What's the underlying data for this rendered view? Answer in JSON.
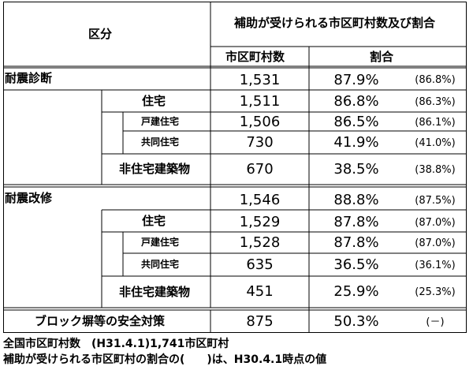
{
  "table": {
    "header": {
      "category": "区分",
      "group": "補助が受けられる市区町村数及び割合",
      "count_col": "市区町村数",
      "ratio_col": "割合"
    },
    "sections": [
      {
        "label": "耐震診断",
        "count": "1,531",
        "ratio": "87.9%",
        "prev": "(86.8%)",
        "rows": [
          {
            "label": "住宅",
            "count": "1,511",
            "ratio": "86.8%",
            "prev": "(86.3%)"
          },
          {
            "label": "戸建住宅",
            "count": "1,506",
            "ratio": "86.5%",
            "prev": "(86.1%)"
          },
          {
            "label": "共同住宅",
            "count": "730",
            "ratio": "41.9%",
            "prev": "(41.0%)"
          },
          {
            "label": "非住宅建築物",
            "count": "670",
            "ratio": "38.5%",
            "prev": "(38.8%)"
          }
        ]
      },
      {
        "label": "耐震改修",
        "count": "1,546",
        "ratio": "88.8%",
        "prev": "(87.5%)",
        "rows": [
          {
            "label": "住宅",
            "count": "1,529",
            "ratio": "87.8%",
            "prev": "(87.0%)"
          },
          {
            "label": "戸建住宅",
            "count": "1,528",
            "ratio": "87.8%",
            "prev": "(87.0%)"
          },
          {
            "label": "共同住宅",
            "count": "635",
            "ratio": "36.5%",
            "prev": "(36.1%)"
          },
          {
            "label": "非住宅建築物",
            "count": "451",
            "ratio": "25.9%",
            "prev": "(25.3%)"
          }
        ]
      }
    ],
    "block": {
      "label": "ブロック塀等の安全対策",
      "count": "875",
      "ratio": "50.3%",
      "prev": "(－)"
    }
  },
  "notes": [
    "全国市区町村数　(H31.4.1)1,741市区町村",
    "補助が受けられる市区町村の割合の(　　)は、H30.4.1時点の値"
  ]
}
